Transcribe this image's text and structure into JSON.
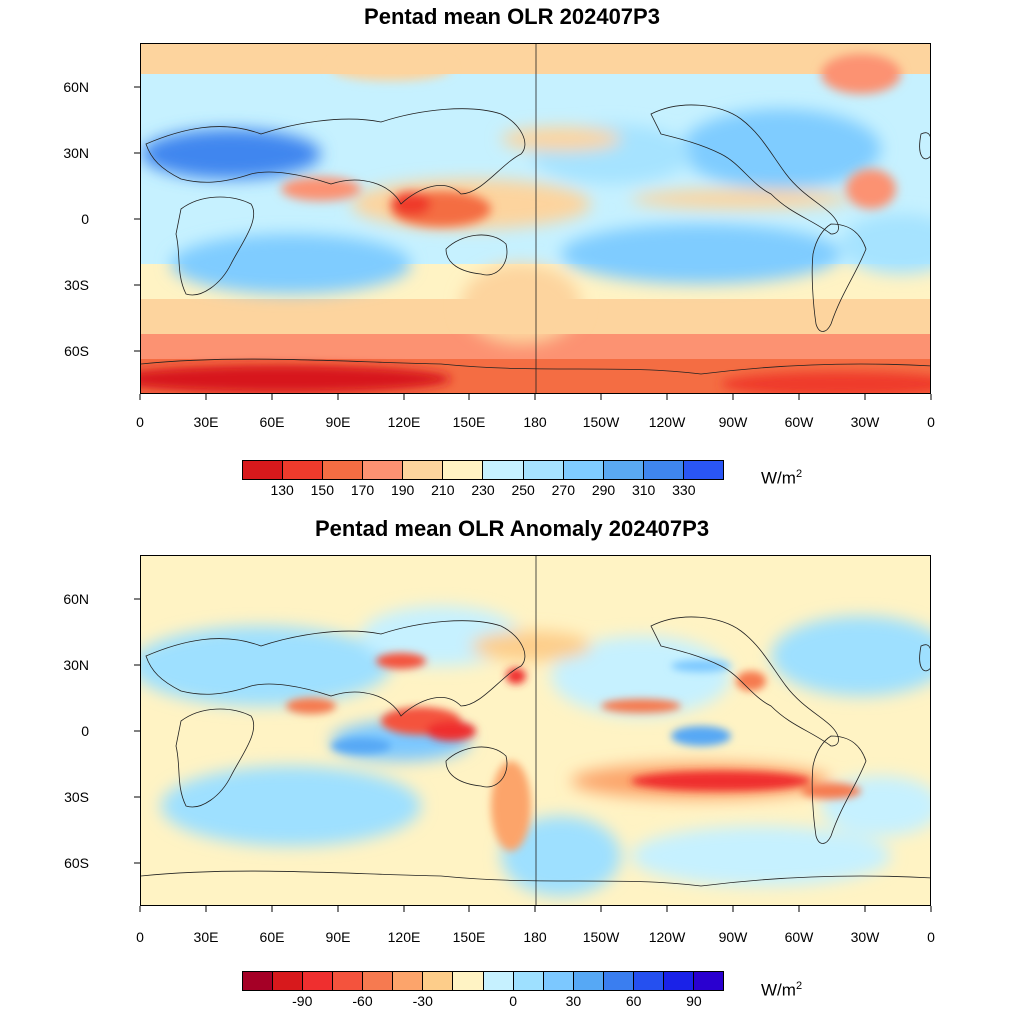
{
  "panels": [
    {
      "id": "olr",
      "title": "Pentad mean OLR 202407P3",
      "units_base": "W/m",
      "units_exp": "2",
      "lat_labels": [
        "60N",
        "30N",
        "0",
        "30S",
        "60S"
      ],
      "lon_labels": [
        "0",
        "30E",
        "60E",
        "90E",
        "120E",
        "150E",
        "180",
        "150W",
        "120W",
        "90W",
        "60W",
        "30W",
        "0"
      ],
      "colorbar": {
        "colors": [
          "#d7191c",
          "#ef3b2c",
          "#f46d43",
          "#fc9272",
          "#fdd49e",
          "#fff3c4",
          "#c6f1ff",
          "#a6e3ff",
          "#7fccff",
          "#5aa9f2",
          "#3f86ef",
          "#2a56f5"
        ],
        "labels": [
          "130",
          "150",
          "170",
          "190",
          "210",
          "230",
          "250",
          "270",
          "290",
          "310",
          "330"
        ]
      }
    },
    {
      "id": "anomaly",
      "title": "Pentad mean OLR Anomaly 202407P3",
      "units_base": "W/m",
      "units_exp": "2",
      "lat_labels": [
        "60N",
        "30N",
        "0",
        "30S",
        "60S"
      ],
      "lon_labels": [
        "0",
        "30E",
        "60E",
        "90E",
        "120E",
        "150E",
        "180",
        "150W",
        "120W",
        "90W",
        "60W",
        "30W",
        "0"
      ],
      "colorbar": {
        "colors": [
          "#a50026",
          "#d7191c",
          "#ef2f2f",
          "#f4533d",
          "#f67a50",
          "#fca46b",
          "#fdcd8a",
          "#fff3c4",
          "#c6f1ff",
          "#9ee0ff",
          "#7cc8ff",
          "#56a8f5",
          "#3a7ef0",
          "#2550f0",
          "#1a22e8",
          "#2a00d0"
        ],
        "labels": [
          "-90",
          "-60",
          "-30",
          "0",
          "30",
          "60",
          "90"
        ]
      }
    }
  ]
}
